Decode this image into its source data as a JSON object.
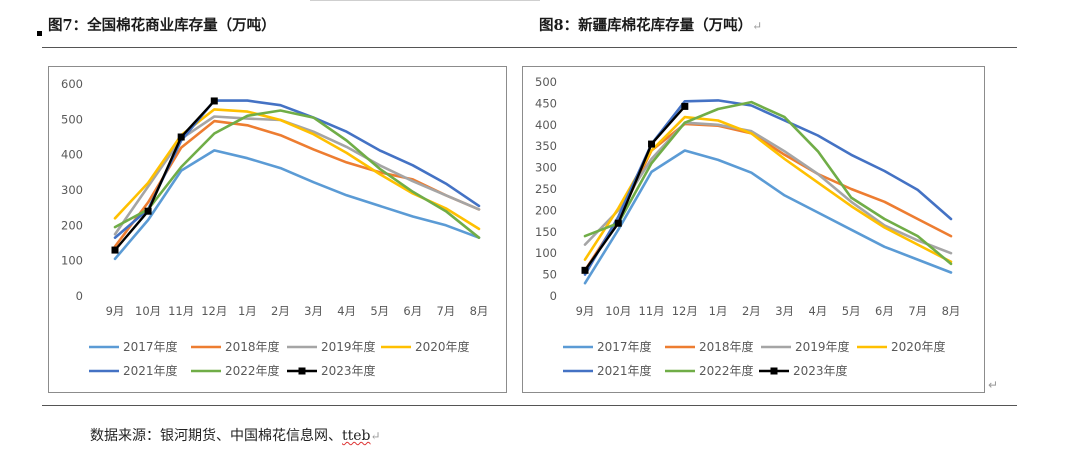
{
  "captions": {
    "left": "图7：全国棉花商业库存量（万吨）",
    "right": "图8：新疆库棉花库存量（万吨）"
  },
  "source": {
    "prefix": "数据来源：银河期货、中国棉花信息网、",
    "tteb": "tteb"
  },
  "colors": {
    "2017年度": "#5b9bd5",
    "2018年度": "#ed7d31",
    "2019年度": "#a5a5a5",
    "2020年度": "#ffc000",
    "2021年度": "#4472c4",
    "2022年度": "#70ad47",
    "2023年度": "#000000"
  },
  "chart_data": [
    {
      "type": "line",
      "title": "图7：全国棉花商业库存量（万吨）",
      "categories": [
        "9月",
        "10月",
        "11月",
        "12月",
        "1月",
        "2月",
        "3月",
        "4月",
        "5月",
        "6月",
        "7月",
        "8月"
      ],
      "ylim": [
        0,
        600
      ],
      "yticks": [
        0,
        100,
        200,
        300,
        400,
        500,
        600
      ],
      "grid": false,
      "legend": "bottom",
      "series": [
        {
          "name": "2017年度",
          "values": [
            105,
            215,
            355,
            412,
            390,
            362,
            322,
            285,
            255,
            225,
            200,
            165
          ]
        },
        {
          "name": "2018年度",
          "values": [
            140,
            265,
            420,
            495,
            483,
            455,
            415,
            378,
            350,
            330,
            285,
            245
          ]
        },
        {
          "name": "2019年度",
          "values": [
            175,
            310,
            445,
            508,
            502,
            498,
            465,
            422,
            370,
            325,
            285,
            245
          ]
        },
        {
          "name": "2020年度",
          "values": [
            220,
            320,
            455,
            528,
            522,
            498,
            458,
            405,
            345,
            290,
            248,
            190
          ]
        },
        {
          "name": "2021年度",
          "values": [
            165,
            245,
            440,
            553,
            553,
            540,
            505,
            465,
            412,
            370,
            318,
            255
          ]
        },
        {
          "name": "2022年度",
          "values": [
            195,
            245,
            365,
            460,
            510,
            525,
            505,
            440,
            360,
            295,
            240,
            165
          ]
        },
        {
          "name": "2023年度",
          "values": [
            130,
            240,
            450,
            552,
            null,
            null,
            null,
            null,
            null,
            null,
            null,
            null
          ]
        }
      ]
    },
    {
      "type": "line",
      "title": "图8：新疆库棉花库存量（万吨）",
      "categories": [
        "9月",
        "10月",
        "11月",
        "12月",
        "1月",
        "2月",
        "3月",
        "4月",
        "5月",
        "6月",
        "7月",
        "8月"
      ],
      "ylim": [
        0,
        500
      ],
      "yticks": [
        0,
        50,
        100,
        150,
        200,
        250,
        300,
        350,
        400,
        450,
        500
      ],
      "grid": false,
      "legend": "bottom",
      "series": [
        {
          "name": "2017年度",
          "values": [
            30,
            155,
            290,
            340,
            318,
            288,
            235,
            195,
            155,
            115,
            85,
            55
          ]
        },
        {
          "name": "2018年度",
          "values": [
            60,
            180,
            340,
            402,
            398,
            380,
            330,
            285,
            250,
            220,
            180,
            140
          ]
        },
        {
          "name": "2019年度",
          "values": [
            120,
            200,
            320,
            405,
            400,
            385,
            338,
            285,
            220,
            165,
            130,
            100
          ]
        },
        {
          "name": "2020年度",
          "values": [
            85,
            205,
            340,
            418,
            410,
            380,
            320,
            265,
            210,
            160,
            120,
            80
          ]
        },
        {
          "name": "2021年度",
          "values": [
            50,
            185,
            355,
            455,
            457,
            445,
            410,
            375,
            330,
            292,
            248,
            180
          ]
        },
        {
          "name": "2022年度",
          "values": [
            140,
            170,
            310,
            405,
            437,
            453,
            418,
            338,
            230,
            180,
            140,
            75
          ]
        },
        {
          "name": "2023年度",
          "values": [
            60,
            170,
            355,
            443,
            null,
            null,
            null,
            null,
            null,
            null,
            null,
            null
          ]
        }
      ]
    }
  ]
}
